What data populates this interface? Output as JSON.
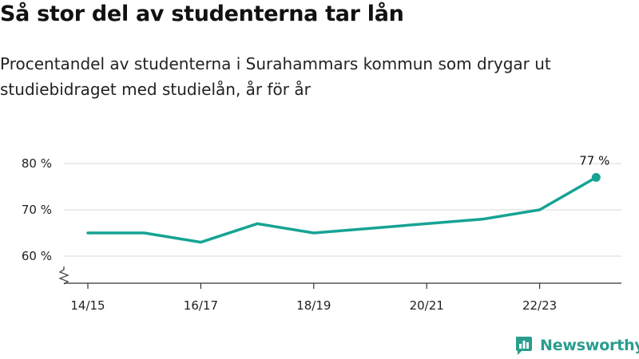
{
  "title": "Så stor del av studenterna tar lån",
  "subtitle": "Procentandel av studenterna i Surahammars kommun som drygar ut studiebidraget med studielån, år för år",
  "brand": {
    "name": "Newsworthy",
    "icon": "bar-chart-logo-icon",
    "color": "#2a9d8f"
  },
  "chart_data": {
    "type": "line",
    "x": [
      "14/15",
      "15/16",
      "16/17",
      "17/18",
      "18/19",
      "19/20",
      "20/21",
      "21/22",
      "22/23",
      "23/24"
    ],
    "x_tick_labels": [
      "14/15",
      "16/17",
      "18/19",
      "20/21",
      "22/23"
    ],
    "series": [
      {
        "values": [
          65,
          65,
          63,
          67,
          65,
          66,
          67,
          68,
          70,
          77
        ],
        "color": "#16a394"
      }
    ],
    "y_ticks": [
      60,
      70,
      80
    ],
    "y_tick_labels": [
      "60 %",
      "70 %",
      "80 %"
    ],
    "ylim": [
      56,
      81
    ],
    "y_axis_break": true,
    "end_label": "77 %",
    "grid": true
  }
}
